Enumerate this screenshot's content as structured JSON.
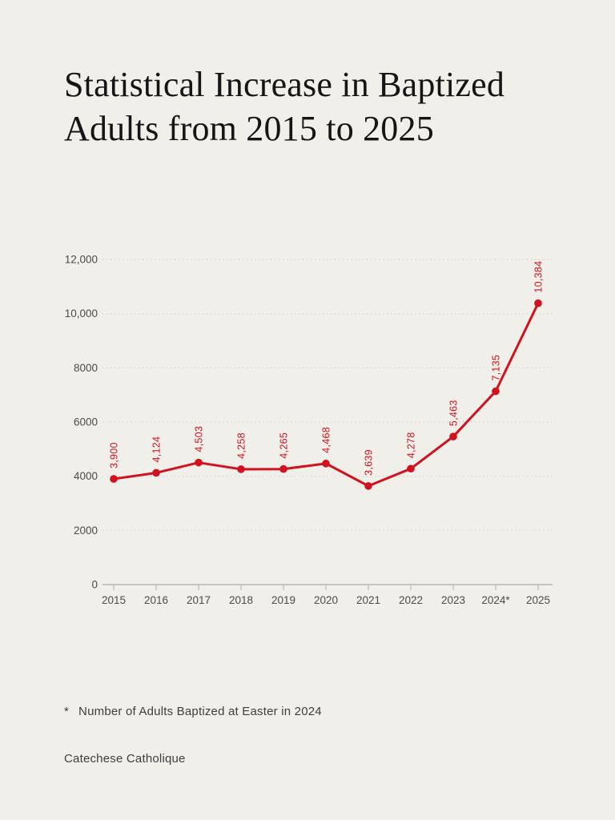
{
  "page": {
    "title_line1": "Statistical Increase in Baptized",
    "title_line2": "Adults from 2015 to 2025",
    "footnote_marker": "*",
    "footnote_text": "Number of Adults Baptized at Easter in 2024",
    "attribution": "Catechese Catholique"
  },
  "colors": {
    "background": "#f1efe9",
    "line": "#d1121e",
    "grid_dotted": "#dcd9d1",
    "axis_baseline": "#c7c4bc",
    "tick_label": "#4b4b4b",
    "title_text": "#151515",
    "note_text": "#3e3e3e"
  },
  "chart_data": {
    "type": "line",
    "title": "Statistical Increase in Baptized Adults from 2015 to 2025",
    "categories": [
      "2015",
      "2016",
      "2017",
      "2018",
      "2019",
      "2020",
      "2021",
      "2022",
      "2023",
      "2024*",
      "2025"
    ],
    "values": [
      3900,
      4124,
      4503,
      4258,
      4265,
      4468,
      3639,
      4278,
      5463,
      7135,
      10384
    ],
    "point_labels": [
      "3,900",
      "4,124",
      "4,503",
      "4,258",
      "4,265",
      "4,468",
      "3,639",
      "4,278",
      "5,463",
      "7,135",
      "10,384"
    ],
    "y_ticks": [
      {
        "value": 0,
        "label": "0"
      },
      {
        "value": 2000,
        "label": "2000"
      },
      {
        "value": 4000,
        "label": "4000"
      },
      {
        "value": 6000,
        "label": "6000"
      },
      {
        "value": 8000,
        "label": "8000"
      },
      {
        "value": 10000,
        "label": "10,000"
      },
      {
        "value": 12000,
        "label": "12,000"
      }
    ],
    "ylim": [
      0,
      12000
    ],
    "xlabel": "",
    "ylabel": "",
    "grid": "horizontal-dotted",
    "legend": "none",
    "point_label_rotation": -90,
    "series_name": "Baptized Adults"
  }
}
